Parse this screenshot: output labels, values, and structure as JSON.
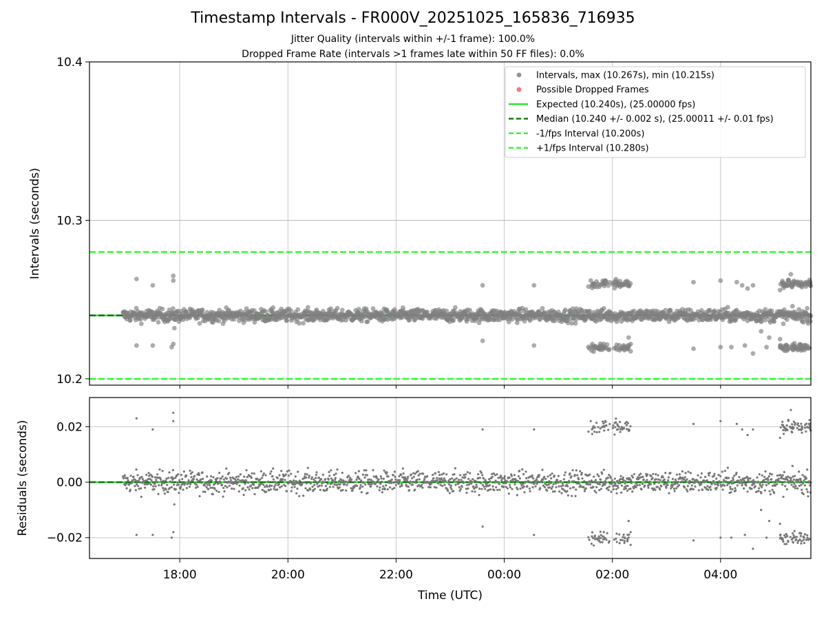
{
  "figure": {
    "title": "Timestamp Intervals - FR000V_20251025_165836_716935",
    "subtitle_1": "Jitter Quality (intervals within +/-1 frame): 100.0%",
    "subtitle_2": "Dropped Frame Rate (intervals >1 frames late within 50 FF files): 0.0%"
  },
  "chart_data": [
    {
      "id": "intervals",
      "type": "scatter",
      "ylabel": "Intervals (seconds)",
      "xlabel": "",
      "ylim": [
        10.196,
        10.4
      ],
      "yticks": [
        10.2,
        10.3,
        10.4
      ],
      "ytick_labels": [
        "10.2",
        "10.3",
        "10.4"
      ],
      "grid": true,
      "legend_position": "top-right",
      "x_unit": "hours since 16:00 UTC",
      "xlim": [
        0.33,
        13.67
      ],
      "xticks": [
        2,
        4,
        6,
        8,
        10,
        12
      ],
      "legend": [
        {
          "label": "Intervals, max (10.267s), min (10.215s)",
          "marker": "dot",
          "color": "#808080"
        },
        {
          "label": "Possible Dropped Frames",
          "marker": "dot",
          "color": "#f06060"
        },
        {
          "label": "Expected (10.240s), (25.00000 fps)",
          "marker": "line",
          "color": "#22e022"
        },
        {
          "label": "Median (10.240 +/- 0.002 s), (25.00011 +/- 0.01 fps)",
          "marker": "dash",
          "color": "#0b6e0b"
        },
        {
          "label": "-1/fps Interval (10.200s)",
          "marker": "dash",
          "color": "#22ff22"
        },
        {
          "label": "+1/fps Interval (10.280s)",
          "marker": "dash",
          "color": "#22ff22"
        }
      ],
      "reference_lines": [
        {
          "name": "Expected",
          "y": 10.24,
          "style": "solid",
          "color": "#22e022"
        },
        {
          "name": "Median",
          "y": 10.24,
          "style": "dashed",
          "color": "#0b6e0b"
        },
        {
          "name": "-1/fps",
          "y": 10.2,
          "style": "dashed",
          "color": "#22ff22"
        },
        {
          "name": "+1/fps",
          "y": 10.28,
          "style": "dashed",
          "color": "#22ff22"
        }
      ],
      "series": [
        {
          "name": "Intervals",
          "color": "#808080",
          "x_start": 0.95,
          "x_end": 13.67,
          "median": 10.24,
          "spread": 0.002,
          "max": 10.267,
          "min": 10.215,
          "outliers": [
            {
              "x": 1.2,
              "y": 10.263
            },
            {
              "x": 1.2,
              "y": 10.221
            },
            {
              "x": 1.5,
              "y": 10.259
            },
            {
              "x": 1.5,
              "y": 10.221
            },
            {
              "x": 1.88,
              "y": 10.265
            },
            {
              "x": 1.88,
              "y": 10.262
            },
            {
              "x": 1.85,
              "y": 10.22
            },
            {
              "x": 1.88,
              "y": 10.222
            },
            {
              "x": 1.9,
              "y": 10.232
            },
            {
              "x": 7.6,
              "y": 10.259
            },
            {
              "x": 7.6,
              "y": 10.224
            },
            {
              "x": 8.55,
              "y": 10.259
            },
            {
              "x": 8.55,
              "y": 10.221
            },
            {
              "x": 9.6,
              "y": 10.262
            },
            {
              "x": 10.3,
              "y": 10.226
            },
            {
              "x": 11.5,
              "y": 10.261
            },
            {
              "x": 11.5,
              "y": 10.219
            },
            {
              "x": 12.0,
              "y": 10.262
            },
            {
              "x": 12.0,
              "y": 10.22
            },
            {
              "x": 12.3,
              "y": 10.261
            },
            {
              "x": 12.4,
              "y": 10.259
            },
            {
              "x": 12.5,
              "y": 10.257
            },
            {
              "x": 12.6,
              "y": 10.259
            },
            {
              "x": 12.2,
              "y": 10.22
            },
            {
              "x": 12.45,
              "y": 10.221
            },
            {
              "x": 12.6,
              "y": 10.216
            },
            {
              "x": 12.85,
              "y": 10.22
            },
            {
              "x": 12.9,
              "y": 10.226
            },
            {
              "x": 12.75,
              "y": 10.23
            },
            {
              "x": 13.1,
              "y": 10.256
            },
            {
              "x": 13.3,
              "y": 10.266
            },
            {
              "x": 13.1,
              "y": 10.225
            }
          ],
          "clusters": [
            {
              "x_from": 9.55,
              "x_to": 10.35,
              "y_high": 10.26,
              "y_low": 10.22
            },
            {
              "x_from": 13.1,
              "x_to": 13.67,
              "y_high": 10.26,
              "y_low": 10.22
            }
          ]
        }
      ]
    },
    {
      "id": "residuals",
      "type": "scatter",
      "ylabel": "Residuals (seconds)",
      "xlabel": "Time (UTC)",
      "ylim": [
        -0.0275,
        0.0305
      ],
      "yticks": [
        -0.02,
        0.0,
        0.02
      ],
      "ytick_labels": [
        "−0.02",
        "0.00",
        "0.02"
      ],
      "grid": true,
      "x_unit": "hours since 16:00 UTC",
      "xlim": [
        0.33,
        13.67
      ],
      "xticks": [
        2,
        4,
        6,
        8,
        10,
        12
      ],
      "xtick_labels": [
        "18:00",
        "20:00",
        "22:00",
        "00:00",
        "02:00",
        "04:00"
      ],
      "reference_lines": [
        {
          "name": "Expected",
          "y": 0.0,
          "style": "solid",
          "color": "#22e022"
        },
        {
          "name": "Median",
          "y": 0.0,
          "style": "dashed",
          "color": "#0b6e0b"
        }
      ],
      "series": [
        {
          "name": "Residuals",
          "color": "#777777",
          "x_start": 0.95,
          "x_end": 13.67,
          "spread": 0.0025
        }
      ]
    }
  ]
}
